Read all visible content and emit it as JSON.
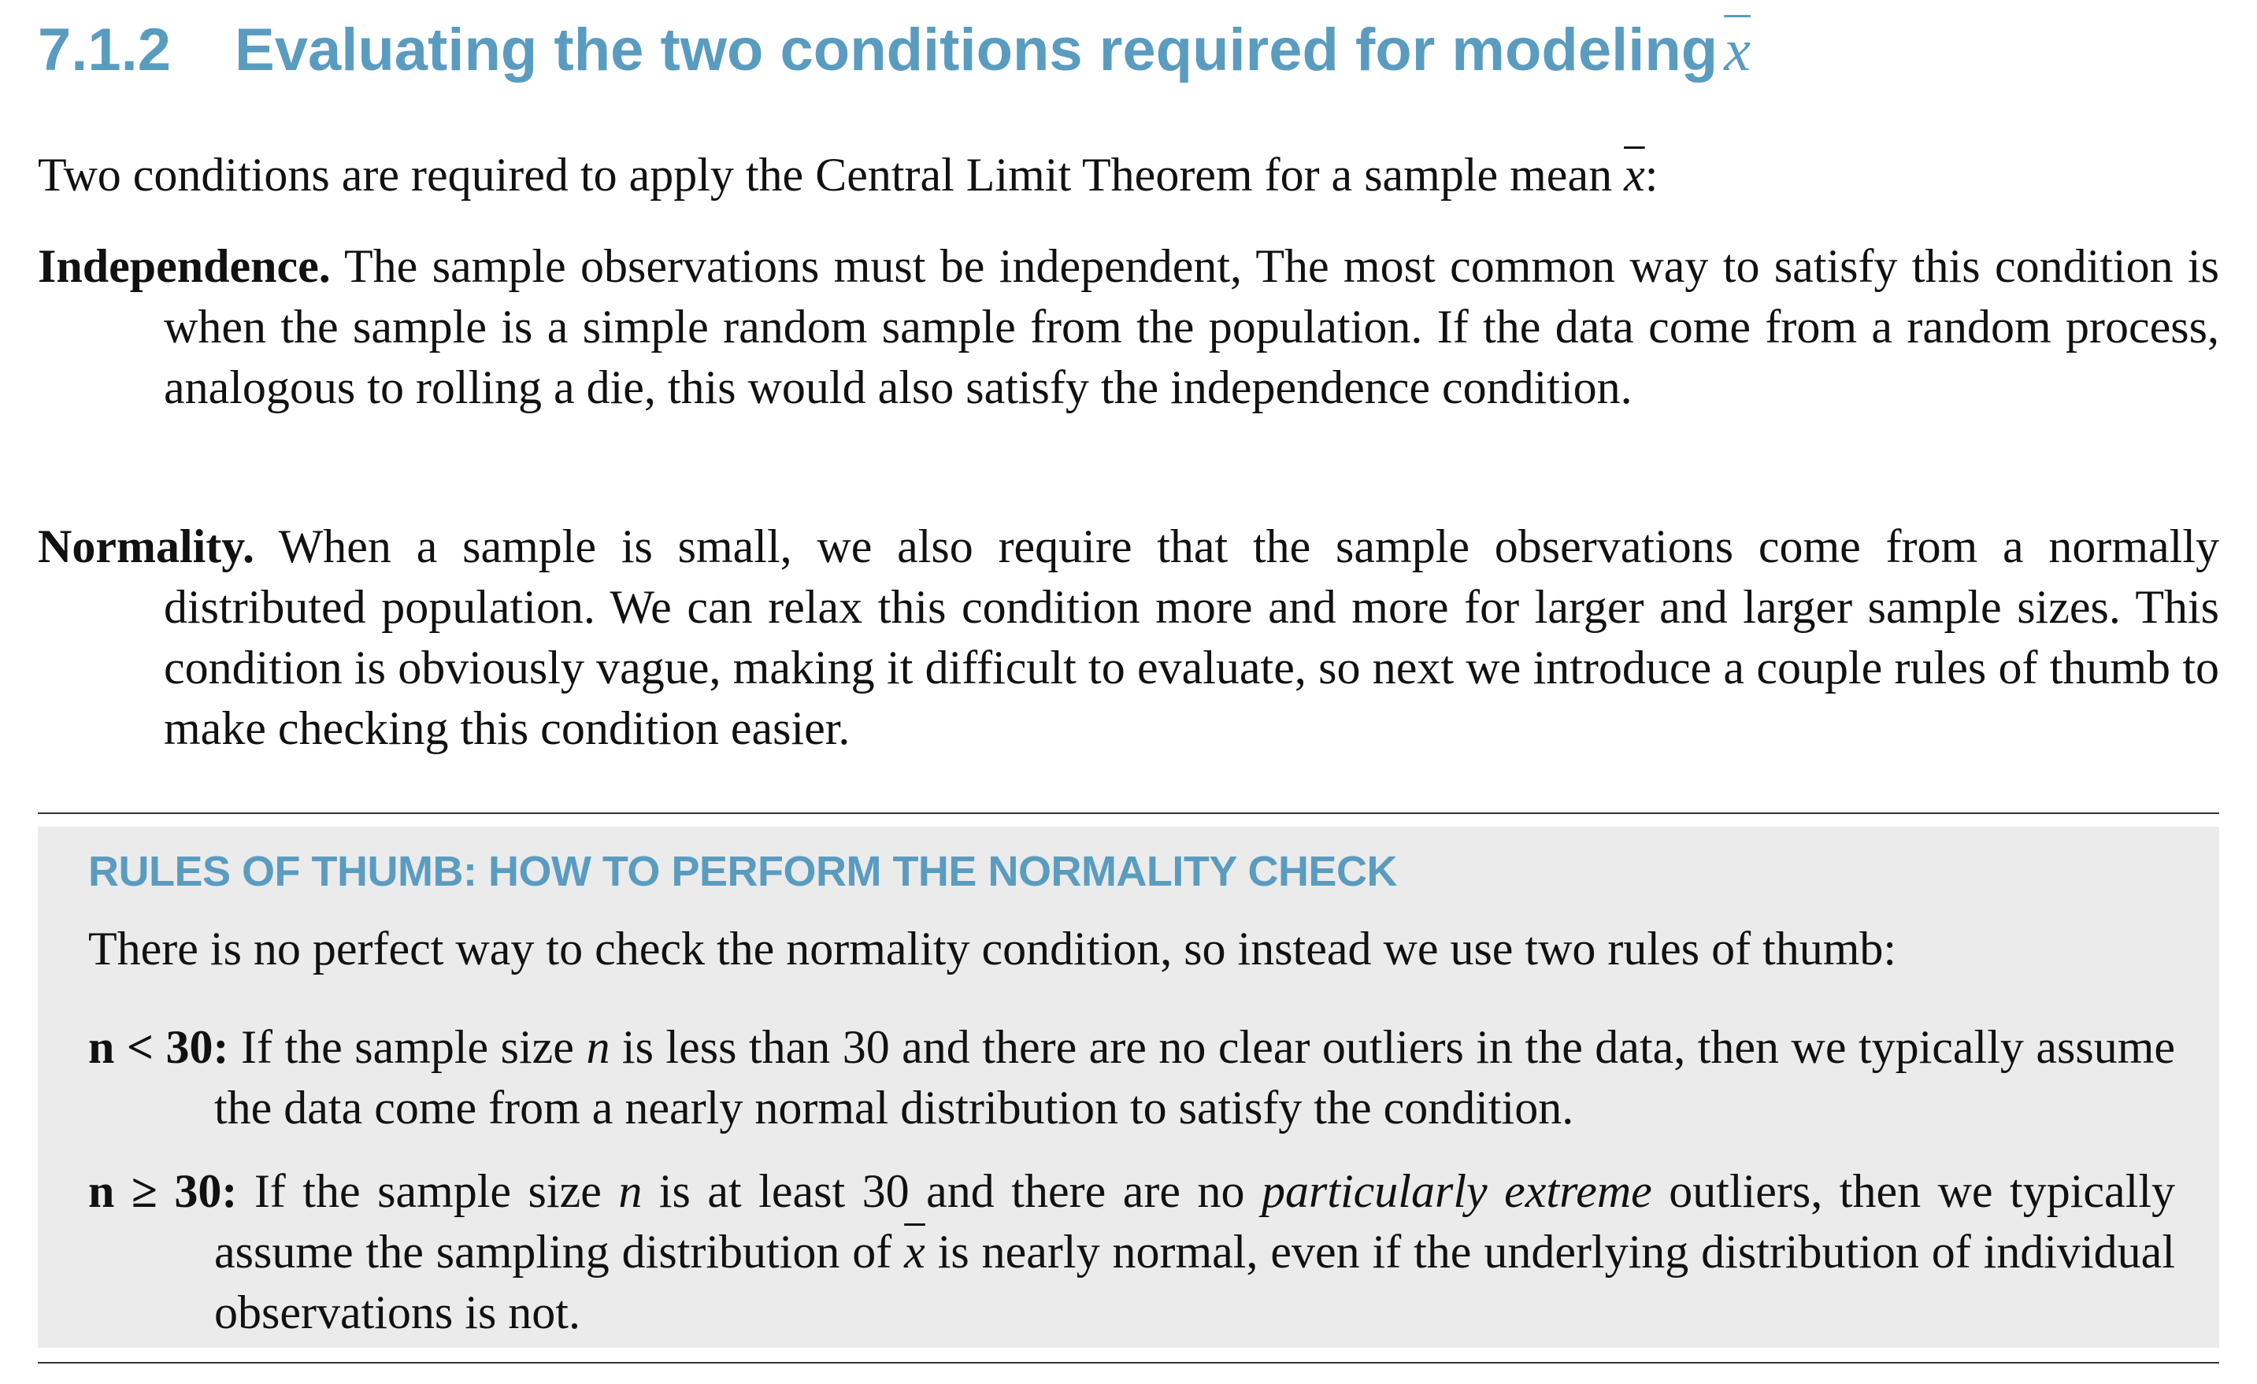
{
  "section": {
    "number": "7.1.2",
    "title": "Evaluating the two conditions required for modeling",
    "title_symbol": "x",
    "intro": "Two conditions are required to apply the Central Limit Theorem for a sample mean ",
    "intro_symbol": "x",
    "intro_end": ":"
  },
  "conditions": [
    {
      "term": "Independence.",
      "text": "The sample observations must be independent, The most common way to satisfy this condition is when the sample is a simple random sample from the population.  If the data come from a random process, analogous to rolling a die, this would also satisfy the independence condition."
    },
    {
      "term": "Normality.",
      "text": "When a sample is small, we also require that the sample observations come from a normally distributed population.  We can relax this condition more and more for larger and larger sample sizes. This condition is obviously vague, making it difficult to evaluate, so next we introduce a couple rules of thumb to make checking this condition easier."
    }
  ],
  "box": {
    "title": "RULES OF THUMB: HOW TO PERFORM THE NORMALITY CHECK",
    "intro": "There is no perfect way to check the normality condition, so instead we use two rules of thumb:",
    "rules": [
      {
        "condition": "n < 30:",
        "text_a": "If the sample size ",
        "var": "n",
        "text_b": " is less than 30 and there are no clear outliers in the data, then we typically assume the data come from a nearly normal distribution to satisfy the condition."
      },
      {
        "condition": "n ≥ 30:",
        "text_a": "If the sample size ",
        "var": "n",
        "text_b": " is at least 30 and there are no ",
        "emphasis": "particularly extreme",
        "text_c": " outliers, then we typically assume the sampling distribution of ",
        "symbol": "x",
        "text_d": " is nearly normal, even if the underlying distribution of individual observations is not."
      }
    ]
  }
}
